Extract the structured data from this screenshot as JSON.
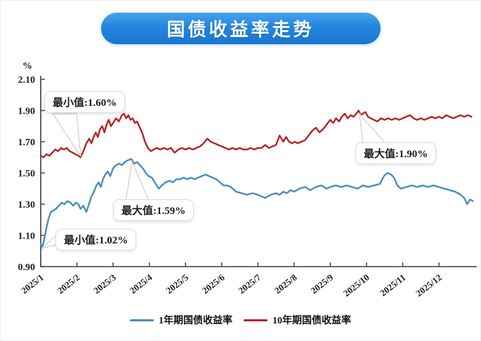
{
  "title": "国债收益率走势",
  "chart_data": {
    "type": "line",
    "title": "国债收益率走势",
    "xlabel": "",
    "ylabel": "%",
    "ylim": [
      0.9,
      2.1
    ],
    "yticks": [
      2.1,
      1.9,
      1.7,
      1.5,
      1.3,
      1.1,
      0.9
    ],
    "x_categories": [
      "2025/1",
      "2025/2",
      "2025/3",
      "2025/4",
      "2025/5",
      "2025/6",
      "2025/7",
      "2025/8",
      "2025/9",
      "2025/10",
      "2025/11",
      "2025/12"
    ],
    "grid": false,
    "legend_position": "bottom",
    "series": [
      {
        "name": "1年期国债收益率",
        "color": "#4a8cbe",
        "min": 1.02,
        "max": 1.59,
        "points": [
          [
            1.0,
            1.05
          ],
          [
            1.04,
            1.02
          ],
          [
            1.1,
            1.08
          ],
          [
            1.16,
            1.15
          ],
          [
            1.22,
            1.21
          ],
          [
            1.28,
            1.25
          ],
          [
            1.35,
            1.26
          ],
          [
            1.42,
            1.27
          ],
          [
            1.5,
            1.29
          ],
          [
            1.58,
            1.31
          ],
          [
            1.66,
            1.3
          ],
          [
            1.74,
            1.32
          ],
          [
            1.82,
            1.31
          ],
          [
            1.9,
            1.29
          ],
          [
            1.97,
            1.31
          ],
          [
            2.04,
            1.3
          ],
          [
            2.1,
            1.27
          ],
          [
            2.18,
            1.29
          ],
          [
            2.26,
            1.25
          ],
          [
            2.33,
            1.3
          ],
          [
            2.4,
            1.35
          ],
          [
            2.47,
            1.38
          ],
          [
            2.54,
            1.42
          ],
          [
            2.6,
            1.44
          ],
          [
            2.66,
            1.41
          ],
          [
            2.72,
            1.46
          ],
          [
            2.78,
            1.49
          ],
          [
            2.85,
            1.51
          ],
          [
            2.92,
            1.48
          ],
          [
            3.0,
            1.53
          ],
          [
            3.08,
            1.55
          ],
          [
            3.16,
            1.56
          ],
          [
            3.24,
            1.55
          ],
          [
            3.32,
            1.57
          ],
          [
            3.4,
            1.58
          ],
          [
            3.5,
            1.59
          ],
          [
            3.58,
            1.56
          ],
          [
            3.66,
            1.57
          ],
          [
            3.74,
            1.55
          ],
          [
            3.82,
            1.53
          ],
          [
            3.9,
            1.5
          ],
          [
            3.98,
            1.48
          ],
          [
            4.07,
            1.47
          ],
          [
            4.15,
            1.44
          ],
          [
            4.26,
            1.4
          ],
          [
            4.35,
            1.42
          ],
          [
            4.45,
            1.44
          ],
          [
            4.55,
            1.45
          ],
          [
            4.65,
            1.44
          ],
          [
            4.75,
            1.46
          ],
          [
            4.85,
            1.46
          ],
          [
            4.95,
            1.47
          ],
          [
            5.05,
            1.46
          ],
          [
            5.15,
            1.47
          ],
          [
            5.25,
            1.46
          ],
          [
            5.35,
            1.47
          ],
          [
            5.45,
            1.48
          ],
          [
            5.55,
            1.49
          ],
          [
            5.65,
            1.48
          ],
          [
            5.75,
            1.47
          ],
          [
            5.85,
            1.46
          ],
          [
            5.95,
            1.44
          ],
          [
            6.05,
            1.42
          ],
          [
            6.15,
            1.42
          ],
          [
            6.25,
            1.41
          ],
          [
            6.4,
            1.38
          ],
          [
            6.55,
            1.37
          ],
          [
            6.7,
            1.36
          ],
          [
            6.85,
            1.37
          ],
          [
            7.0,
            1.36
          ],
          [
            7.1,
            1.35
          ],
          [
            7.2,
            1.34
          ],
          [
            7.35,
            1.36
          ],
          [
            7.5,
            1.37
          ],
          [
            7.6,
            1.36
          ],
          [
            7.7,
            1.38
          ],
          [
            7.8,
            1.37
          ],
          [
            7.9,
            1.39
          ],
          [
            8.0,
            1.38
          ],
          [
            8.15,
            1.4
          ],
          [
            8.3,
            1.41
          ],
          [
            8.45,
            1.39
          ],
          [
            8.6,
            1.41
          ],
          [
            8.75,
            1.42
          ],
          [
            8.9,
            1.4
          ],
          [
            9.0,
            1.41
          ],
          [
            9.15,
            1.42
          ],
          [
            9.3,
            1.41
          ],
          [
            9.45,
            1.42
          ],
          [
            9.6,
            1.41
          ],
          [
            9.75,
            1.4
          ],
          [
            9.9,
            1.42
          ],
          [
            10.05,
            1.41
          ],
          [
            10.2,
            1.42
          ],
          [
            10.37,
            1.43
          ],
          [
            10.48,
            1.48
          ],
          [
            10.58,
            1.5
          ],
          [
            10.68,
            1.49
          ],
          [
            10.76,
            1.47
          ],
          [
            10.85,
            1.42
          ],
          [
            10.95,
            1.4
          ],
          [
            11.1,
            1.41
          ],
          [
            11.25,
            1.42
          ],
          [
            11.4,
            1.41
          ],
          [
            11.55,
            1.42
          ],
          [
            11.7,
            1.41
          ],
          [
            11.85,
            1.42
          ],
          [
            12.0,
            1.41
          ],
          [
            12.15,
            1.4
          ],
          [
            12.3,
            1.39
          ],
          [
            12.45,
            1.38
          ],
          [
            12.6,
            1.36
          ],
          [
            12.7,
            1.34
          ],
          [
            12.78,
            1.3
          ],
          [
            12.86,
            1.33
          ],
          [
            12.94,
            1.32
          ]
        ]
      },
      {
        "name": "10年期国债收益率",
        "color": "#b42426",
        "min": 1.6,
        "max": 1.9,
        "points": [
          [
            1.0,
            1.61
          ],
          [
            1.08,
            1.6
          ],
          [
            1.16,
            1.62
          ],
          [
            1.24,
            1.61
          ],
          [
            1.32,
            1.63
          ],
          [
            1.4,
            1.65
          ],
          [
            1.48,
            1.64
          ],
          [
            1.56,
            1.66
          ],
          [
            1.64,
            1.65
          ],
          [
            1.72,
            1.66
          ],
          [
            1.8,
            1.64
          ],
          [
            1.88,
            1.63
          ],
          [
            1.96,
            1.62
          ],
          [
            2.04,
            1.61
          ],
          [
            2.1,
            1.6
          ],
          [
            2.18,
            1.64
          ],
          [
            2.26,
            1.69
          ],
          [
            2.34,
            1.72
          ],
          [
            2.4,
            1.69
          ],
          [
            2.46,
            1.73
          ],
          [
            2.52,
            1.76
          ],
          [
            2.58,
            1.73
          ],
          [
            2.64,
            1.78
          ],
          [
            2.7,
            1.8
          ],
          [
            2.76,
            1.76
          ],
          [
            2.82,
            1.81
          ],
          [
            2.88,
            1.84
          ],
          [
            2.94,
            1.8
          ],
          [
            3.0,
            1.82
          ],
          [
            3.08,
            1.85
          ],
          [
            3.16,
            1.83
          ],
          [
            3.24,
            1.87
          ],
          [
            3.3,
            1.88
          ],
          [
            3.36,
            1.85
          ],
          [
            3.42,
            1.87
          ],
          [
            3.48,
            1.84
          ],
          [
            3.54,
            1.85
          ],
          [
            3.6,
            1.82
          ],
          [
            3.66,
            1.83
          ],
          [
            3.72,
            1.8
          ],
          [
            3.8,
            1.76
          ],
          [
            3.88,
            1.7
          ],
          [
            3.96,
            1.66
          ],
          [
            4.04,
            1.64
          ],
          [
            4.12,
            1.65
          ],
          [
            4.2,
            1.66
          ],
          [
            4.3,
            1.65
          ],
          [
            4.4,
            1.66
          ],
          [
            4.5,
            1.65
          ],
          [
            4.6,
            1.66
          ],
          [
            4.7,
            1.63
          ],
          [
            4.8,
            1.65
          ],
          [
            4.9,
            1.66
          ],
          [
            5.0,
            1.65
          ],
          [
            5.1,
            1.66
          ],
          [
            5.2,
            1.65
          ],
          [
            5.3,
            1.66
          ],
          [
            5.4,
            1.67
          ],
          [
            5.5,
            1.69
          ],
          [
            5.6,
            1.72
          ],
          [
            5.7,
            1.7
          ],
          [
            5.8,
            1.69
          ],
          [
            5.9,
            1.68
          ],
          [
            6.0,
            1.67
          ],
          [
            6.1,
            1.66
          ],
          [
            6.2,
            1.65
          ],
          [
            6.3,
            1.66
          ],
          [
            6.4,
            1.65
          ],
          [
            6.5,
            1.66
          ],
          [
            6.6,
            1.65
          ],
          [
            6.7,
            1.65
          ],
          [
            6.8,
            1.66
          ],
          [
            6.9,
            1.65
          ],
          [
            7.0,
            1.66
          ],
          [
            7.1,
            1.66
          ],
          [
            7.2,
            1.68
          ],
          [
            7.3,
            1.66
          ],
          [
            7.4,
            1.67
          ],
          [
            7.5,
            1.68
          ],
          [
            7.6,
            1.74
          ],
          [
            7.7,
            1.7
          ],
          [
            7.78,
            1.73
          ],
          [
            7.86,
            1.7
          ],
          [
            7.94,
            1.69
          ],
          [
            8.02,
            1.7
          ],
          [
            8.1,
            1.69
          ],
          [
            8.2,
            1.7
          ],
          [
            8.3,
            1.71
          ],
          [
            8.4,
            1.74
          ],
          [
            8.5,
            1.77
          ],
          [
            8.6,
            1.79
          ],
          [
            8.7,
            1.76
          ],
          [
            8.8,
            1.78
          ],
          [
            8.9,
            1.81
          ],
          [
            9.0,
            1.84
          ],
          [
            9.08,
            1.82
          ],
          [
            9.16,
            1.85
          ],
          [
            9.24,
            1.83
          ],
          [
            9.32,
            1.86
          ],
          [
            9.4,
            1.88
          ],
          [
            9.48,
            1.85
          ],
          [
            9.56,
            1.87
          ],
          [
            9.64,
            1.86
          ],
          [
            9.72,
            1.88
          ],
          [
            9.78,
            1.9
          ],
          [
            9.84,
            1.87
          ],
          [
            9.9,
            1.88
          ],
          [
            9.97,
            1.89
          ],
          [
            10.04,
            1.86
          ],
          [
            10.12,
            1.85
          ],
          [
            10.2,
            1.84
          ],
          [
            10.3,
            1.83
          ],
          [
            10.4,
            1.85
          ],
          [
            10.5,
            1.84
          ],
          [
            10.6,
            1.85
          ],
          [
            10.7,
            1.84
          ],
          [
            10.8,
            1.85
          ],
          [
            10.9,
            1.84
          ],
          [
            11.0,
            1.85
          ],
          [
            11.1,
            1.86
          ],
          [
            11.2,
            1.87
          ],
          [
            11.3,
            1.85
          ],
          [
            11.4,
            1.84
          ],
          [
            11.5,
            1.85
          ],
          [
            11.6,
            1.84
          ],
          [
            11.7,
            1.85
          ],
          [
            11.8,
            1.86
          ],
          [
            11.9,
            1.85
          ],
          [
            12.0,
            1.86
          ],
          [
            12.1,
            1.85
          ],
          [
            12.2,
            1.87
          ],
          [
            12.3,
            1.86
          ],
          [
            12.4,
            1.85
          ],
          [
            12.5,
            1.86
          ],
          [
            12.6,
            1.87
          ],
          [
            12.7,
            1.86
          ],
          [
            12.8,
            1.87
          ],
          [
            12.9,
            1.86
          ]
        ]
      }
    ],
    "annotations": [
      {
        "label": "最小值:1.60%",
        "series": "10年期国债收益率",
        "value": 1.6
      },
      {
        "label": "最大值:1.59%",
        "series": "1年期国债收益率",
        "value": 1.59
      },
      {
        "label": "最小值:1.02%",
        "series": "1年期国债收益率",
        "value": 1.02
      },
      {
        "label": "最大值:1.90%",
        "series": "10年期国债收益率",
        "value": 1.9
      }
    ]
  },
  "legend": {
    "items": [
      {
        "label": "1年期国债收益率",
        "color": "#4a8cbe"
      },
      {
        "label": "10年期国债收益率",
        "color": "#b42426"
      }
    ]
  }
}
